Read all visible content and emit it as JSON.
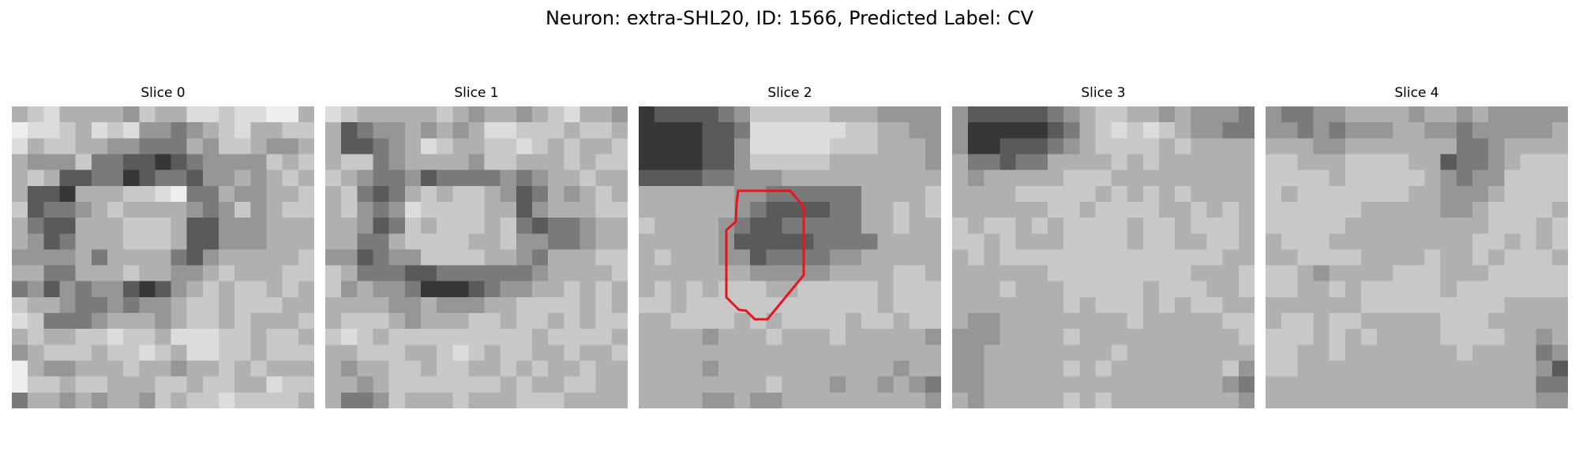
{
  "title": "Neuron: extra-SHL20, ID: 1566, Predicted Label: CV",
  "colors": {
    "outline": "#e8141c",
    "background": "#ffffff"
  },
  "panels": [
    {
      "title": "Slice 0",
      "grid": [
        "3213333423311211003",
        "0112312144543213322",
        "1322334455534223443",
        "3444255667654444232",
        "3236655765564434323",
        "3667333221055344332",
        "2655432333345424322",
        "3566333222366444333",
        "3465333222366444333",
        "4444353333564333332",
        "3355333233443233322",
        "5464544676432322323",
        "2334554544322322233",
        "1255543334322323332",
        "3233221223111223223",
        "4322232212311223222",
        "0344333233433232333",
        "0223223332232233122",
        "5334343342322122223"
      ]
    },
    {
      "title": "Slice 1",
      "grid": [
        "1233333234334321334",
        "3654434343112223223",
        "3665431233221232332",
        "3225433334223332322",
        "2345546555545433233",
        "3256532322346534323",
        "3245412222336433322",
        "3346523222325655433",
        "3355322223324455433",
        "4465442222334533322",
        "2355566555555433332",
        "2434457776544332323",
        "3333443444332222323",
        "3222343332232232322",
        "2123222222222322223",
        "3322233212322332332",
        "3433223223323233233",
        "3343222222232332233",
        "3554233323332223333"
      ]
    },
    {
      "title": "Slice 2",
      "grid": [
        "7666654222223334444",
        "7777665111111223344",
        "7777664111112223334",
        "7777664222223333334",
        "6666554443333333333",
        "3333334455555533332",
        "3333334566665533232",
        "2333345665555533233",
        "3333346666655553333",
        "3233344655554433333",
        "3333333444443333223",
        "3232322233222223222",
        "2232222222222223222",
        "3322223232222322322",
        "3333433323332333334",
        "3333333333333333333",
        "3333433333333333433",
        "3333333323334334345",
        "3333443443333333334"
      ]
    },
    {
      "title": "Slice 3",
      "grid": [
        "4666665432233434445",
        "4777776532121234455",
        "4776665432222323333",
        "3556553333232333333",
        "3433333222333333333",
        "3333222223232323333",
        "3333332232222332323",
        "2322323222232232223",
        "2232333222232233223",
        "3232222222222222233",
        "3333332222222223332",
        "3332333222223222332",
        "3333333232223232233",
        "3443333333323333322",
        "4443333233333333332",
        "4433333333233333333",
        "4433333232333333324",
        "4433333333333333345",
        "3433333232333333334"
      ]
    },
    {
      "title": "Slice 4",
      "grid": [
        "4554433334334344444",
        "4454544433445444443",
        "3334433333335543333",
        "2233322223365543222",
        "2222322222345442222",
        "2322222223344432222",
        "2222223333344322223",
        "2222233333333322232",
        "3222333333333223232",
        "3322223333233232223",
        "2234333322233322222",
        "2233232222232222222",
        "3333332222222223333",
        "3223223333322233333",
        "2223232333322223343",
        "2233233333332333354",
        "2233333333333333346",
        "3333333333333333355",
        "3333333333333333344"
      ]
    }
  ]
}
